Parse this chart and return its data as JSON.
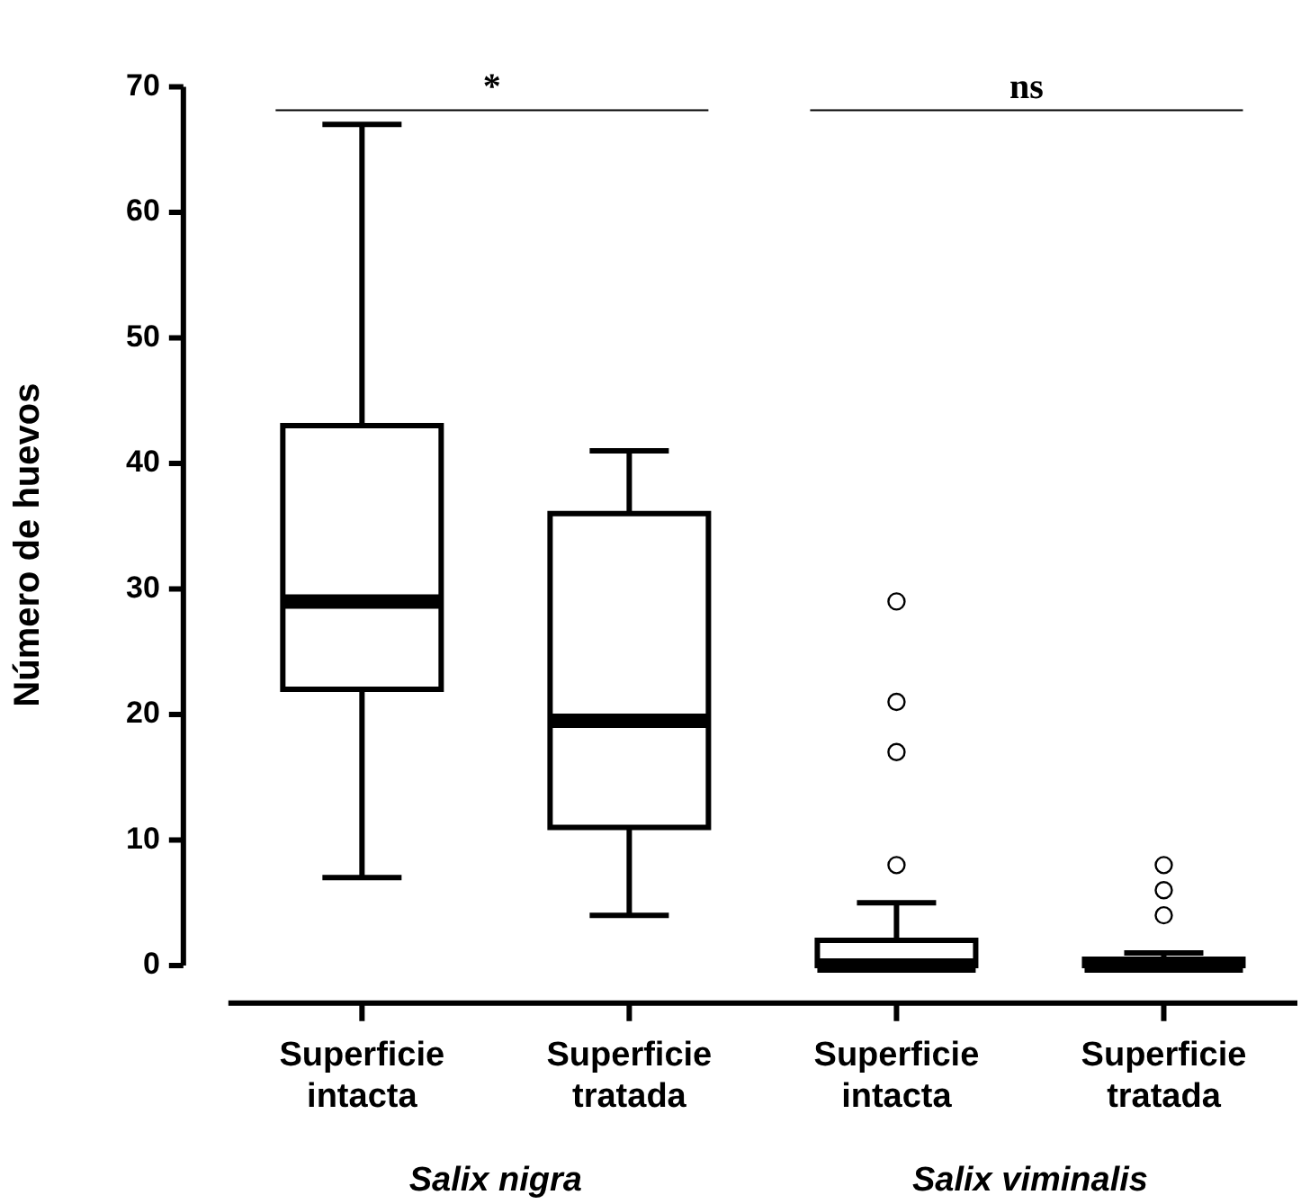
{
  "chart_data": {
    "type": "box",
    "ylabel": "Número de huevos",
    "categories": [
      "Superficie\nintacta",
      "Superficie\ntratada",
      "Superficie\nintacta",
      "Superficie\ntratada"
    ],
    "boxes": [
      {
        "low": 7,
        "q1": 22,
        "median": 29,
        "q3": 43,
        "high": 67
      },
      {
        "low": 4,
        "q1": 11,
        "median": 19.5,
        "q3": 36,
        "high": 41
      },
      {
        "low": 0,
        "q1": 0,
        "median": 0,
        "q3": 2,
        "high": 5,
        "outliers": [
          8,
          17,
          21,
          29
        ]
      },
      {
        "low": 0,
        "q1": 0,
        "median": 0,
        "q3": 0.5,
        "high": 1,
        "outliers": [
          4,
          6,
          8
        ]
      }
    ],
    "color": "#000000",
    "ylim": [
      -3,
      70
    ],
    "yticks": [
      0,
      10,
      20,
      30,
      40,
      50,
      60,
      70
    ],
    "grid": false,
    "legend": false,
    "annotations": [
      "*",
      "ns",
      "Salix nigra",
      "Salix viminalis"
    ]
  }
}
